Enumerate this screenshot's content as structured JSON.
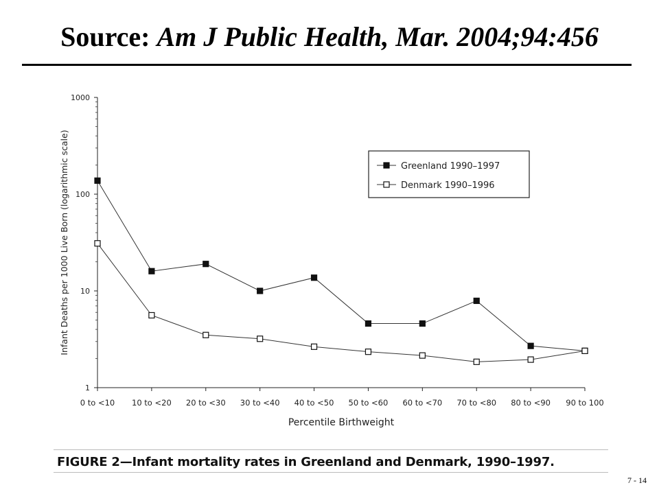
{
  "slide": {
    "title_prefix": "Source:",
    "title_citation": "Am J Public Health, Mar. 2004;94:456",
    "caption": "FIGURE 2—Infant mortality rates in Greenland and Denmark, 1990–1997.",
    "slide_number": "7 - 14"
  },
  "chart_data": {
    "type": "line",
    "title": "",
    "xlabel": "Percentile Birthweight",
    "ylabel": "Infant Deaths per 1000 Live Born (logarithmic scale)",
    "yscale": "log",
    "ylim": [
      1,
      1000
    ],
    "y_ticks": [
      "1",
      "10",
      "100",
      "1000"
    ],
    "categories": [
      "0 to <10",
      "10 to <20",
      "20 to <30",
      "30 to <40",
      "40 to <50",
      "50 to <60",
      "60 to <70",
      "70 to <80",
      "80 to <90",
      "90 to 100"
    ],
    "legend_position": "top-right",
    "grid": false,
    "series": [
      {
        "name": "Greenland 1990–1997",
        "marker": "filled-square",
        "values": [
          138,
          16,
          19,
          10,
          13.7,
          4.6,
          4.6,
          7.9,
          2.7,
          2.4
        ]
      },
      {
        "name": "Denmark 1990–1996",
        "marker": "open-square",
        "values": [
          31,
          5.6,
          3.5,
          3.2,
          2.65,
          2.35,
          2.15,
          1.85,
          1.95,
          2.4
        ]
      }
    ]
  }
}
